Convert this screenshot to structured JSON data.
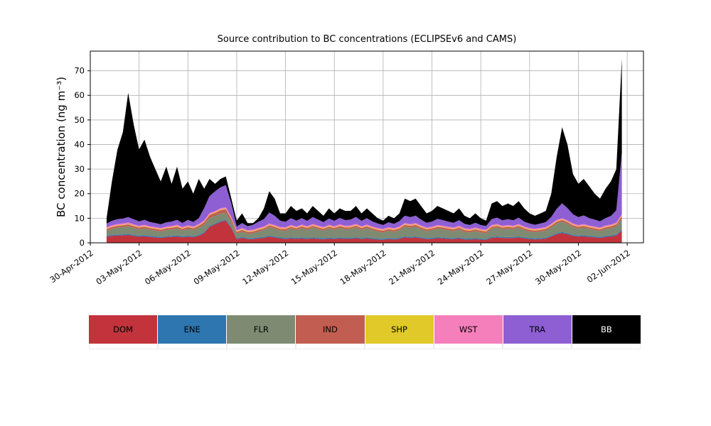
{
  "chart_data": {
    "type": "area",
    "stacked": true,
    "title": "Source contribution to BC concentrations (ECLIPSEv6 and CAMS)",
    "xlabel": "",
    "ylabel": "BC concentration (ng m⁻³)",
    "grid": true,
    "legend_position": "bottom",
    "xlim": [
      0,
      34
    ],
    "ylim": [
      0,
      78
    ],
    "y_ticks": [
      0,
      10,
      20,
      30,
      40,
      50,
      60,
      70
    ],
    "x_unit": "days since 30-Apr-2012",
    "x_tick_pos": [
      0,
      3,
      6,
      9,
      12,
      15,
      18,
      21,
      24,
      27,
      30,
      33
    ],
    "x_tick_labels": [
      "30-Apr-2012",
      "03-May-2012",
      "06-May-2012",
      "09-May-2012",
      "12-May-2012",
      "15-May-2012",
      "18-May-2012",
      "21-May-2012",
      "24-May-2012",
      "27-May-2012",
      "30-May-2012",
      "02-Jun-2012"
    ],
    "x": [
      1,
      1.33,
      1.67,
      2,
      2.33,
      2.67,
      3,
      3.33,
      3.67,
      4,
      4.33,
      4.67,
      5,
      5.33,
      5.67,
      6,
      6.33,
      6.67,
      7,
      7.33,
      7.67,
      8,
      8.33,
      8.67,
      9,
      9.33,
      9.67,
      10,
      10.33,
      10.67,
      11,
      11.33,
      11.67,
      12,
      12.33,
      12.67,
      13,
      13.33,
      13.67,
      14,
      14.33,
      14.67,
      15,
      15.33,
      15.67,
      16,
      16.33,
      16.67,
      17,
      17.33,
      17.67,
      18,
      18.33,
      18.67,
      19,
      19.33,
      19.67,
      20,
      20.33,
      20.67,
      21,
      21.33,
      21.67,
      22,
      22.33,
      22.67,
      23,
      23.33,
      23.67,
      24,
      24.33,
      24.67,
      25,
      25.33,
      25.67,
      26,
      26.33,
      26.67,
      27,
      27.33,
      27.67,
      28,
      28.33,
      28.67,
      29,
      29.33,
      29.67,
      30,
      30.33,
      30.67,
      31,
      31.33,
      31.67,
      32,
      32.33,
      32.67
    ],
    "series": [
      {
        "name": "DOM",
        "color": "#c2333c",
        "text_color": "#000000",
        "values": [
          2.5,
          2.8,
          3.0,
          3.0,
          3.2,
          2.8,
          2.5,
          2.7,
          2.4,
          2.2,
          2.0,
          2.3,
          2.4,
          2.6,
          2.2,
          2.5,
          2.3,
          2.8,
          4.0,
          6.5,
          7.5,
          8.5,
          9.0,
          6.0,
          1.5,
          2.0,
          1.5,
          1.5,
          1.8,
          2.0,
          2.5,
          2.2,
          1.8,
          1.5,
          1.8,
          1.6,
          1.8,
          1.5,
          1.8,
          1.6,
          1.4,
          1.7,
          1.5,
          1.8,
          1.6,
          1.6,
          1.9,
          1.5,
          1.8,
          1.5,
          1.3,
          1.2,
          1.5,
          1.3,
          1.6,
          2.2,
          2.0,
          2.2,
          1.8,
          1.5,
          1.6,
          1.9,
          1.8,
          1.6,
          1.5,
          1.8,
          1.4,
          1.3,
          1.5,
          1.3,
          1.2,
          2.0,
          2.2,
          1.9,
          2.0,
          1.9,
          2.2,
          1.8,
          1.5,
          1.4,
          1.5,
          1.7,
          2.5,
          3.5,
          4.0,
          3.5,
          2.8,
          2.5,
          2.7,
          2.4,
          2.2,
          2.0,
          2.4,
          2.6,
          3.0,
          5.0
        ]
      },
      {
        "name": "ENE",
        "color": "#2e76b0",
        "text_color": "#000000",
        "values": [
          0.4,
          0.4,
          0.4,
          0.4,
          0.4,
          0.4,
          0.4,
          0.4,
          0.4,
          0.4,
          0.4,
          0.4,
          0.4,
          0.4,
          0.4,
          0.4,
          0.4,
          0.4,
          0.4,
          0.4,
          0.4,
          0.4,
          0.4,
          0.4,
          0.4,
          0.4,
          0.4,
          0.4,
          0.4,
          0.4,
          0.4,
          0.4,
          0.4,
          0.4,
          0.4,
          0.4,
          0.4,
          0.4,
          0.4,
          0.4,
          0.4,
          0.4,
          0.4,
          0.4,
          0.4,
          0.4,
          0.4,
          0.4,
          0.4,
          0.4,
          0.4,
          0.4,
          0.4,
          0.4,
          0.4,
          0.4,
          0.4,
          0.4,
          0.4,
          0.4,
          0.4,
          0.4,
          0.4,
          0.4,
          0.4,
          0.4,
          0.4,
          0.4,
          0.4,
          0.4,
          0.4,
          0.4,
          0.4,
          0.4,
          0.4,
          0.4,
          0.4,
          0.4,
          0.4,
          0.4,
          0.4,
          0.4,
          0.4,
          0.4,
          0.4,
          0.4,
          0.4,
          0.4,
          0.4,
          0.4,
          0.4,
          0.4,
          0.4,
          0.4,
          0.4,
          0.4
        ]
      },
      {
        "name": "FLR",
        "color": "#7e8b72",
        "text_color": "#000000",
        "values": [
          2.0,
          2.5,
          2.8,
          3.0,
          3.2,
          2.9,
          2.6,
          2.8,
          2.5,
          2.4,
          2.2,
          2.5,
          2.6,
          2.9,
          2.4,
          2.8,
          2.5,
          3.0,
          3.0,
          3.2,
          3.0,
          3.0,
          2.8,
          2.2,
          1.8,
          2.2,
          1.8,
          2.0,
          2.4,
          2.8,
          3.5,
          3.2,
          2.8,
          3.0,
          3.6,
          3.2,
          3.8,
          3.4,
          4.0,
          3.6,
          3.2,
          3.8,
          3.4,
          3.9,
          3.5,
          3.6,
          4.0,
          3.4,
          3.8,
          3.3,
          2.9,
          2.6,
          3.0,
          2.8,
          3.2,
          4.0,
          3.8,
          4.0,
          3.4,
          2.9,
          3.1,
          3.5,
          3.3,
          3.1,
          2.9,
          3.3,
          2.7,
          2.5,
          2.9,
          2.5,
          2.3,
          3.4,
          3.6,
          3.2,
          3.4,
          3.2,
          3.6,
          3.0,
          2.7,
          2.5,
          2.7,
          2.9,
          3.4,
          4.0,
          4.2,
          3.8,
          3.2,
          2.9,
          3.1,
          2.8,
          2.6,
          2.4,
          2.8,
          3.0,
          3.4,
          4.5
        ]
      },
      {
        "name": "IND",
        "color": "#c25e51",
        "text_color": "#000000",
        "values": [
          0.7,
          0.7,
          0.7,
          0.7,
          0.7,
          0.7,
          0.7,
          0.7,
          0.7,
          0.7,
          0.7,
          0.7,
          0.7,
          0.7,
          0.7,
          0.7,
          0.7,
          0.7,
          1.0,
          1.2,
          1.3,
          1.4,
          1.5,
          1.1,
          0.7,
          0.7,
          0.7,
          0.7,
          0.7,
          0.7,
          0.7,
          0.7,
          0.7,
          0.7,
          0.7,
          0.7,
          0.7,
          0.7,
          0.7,
          0.7,
          0.7,
          0.7,
          0.7,
          0.7,
          0.7,
          0.7,
          0.7,
          0.7,
          0.7,
          0.7,
          0.7,
          0.7,
          0.7,
          0.7,
          0.7,
          0.7,
          0.7,
          0.7,
          0.7,
          0.7,
          0.7,
          0.7,
          0.7,
          0.7,
          0.7,
          0.7,
          0.7,
          0.7,
          0.7,
          0.7,
          0.7,
          0.7,
          0.7,
          0.7,
          0.7,
          0.7,
          0.7,
          0.7,
          0.7,
          0.7,
          0.7,
          0.7,
          0.7,
          0.7,
          0.7,
          0.7,
          0.7,
          0.7,
          0.7,
          0.7,
          0.7,
          0.7,
          0.7,
          0.7,
          0.7,
          1.0
        ]
      },
      {
        "name": "SHP",
        "color": "#e0c928",
        "text_color": "#000000",
        "values": [
          0.25,
          0.25,
          0.25,
          0.25,
          0.25,
          0.25,
          0.25,
          0.25,
          0.25,
          0.25,
          0.25,
          0.25,
          0.25,
          0.25,
          0.25,
          0.25,
          0.25,
          0.25,
          0.25,
          0.25,
          0.25,
          0.25,
          0.25,
          0.25,
          0.25,
          0.25,
          0.25,
          0.25,
          0.25,
          0.25,
          0.25,
          0.25,
          0.25,
          0.25,
          0.25,
          0.25,
          0.25,
          0.25,
          0.25,
          0.25,
          0.25,
          0.25,
          0.25,
          0.25,
          0.25,
          0.25,
          0.25,
          0.25,
          0.25,
          0.25,
          0.25,
          0.25,
          0.25,
          0.25,
          0.25,
          0.25,
          0.25,
          0.25,
          0.25,
          0.25,
          0.25,
          0.25,
          0.25,
          0.25,
          0.25,
          0.25,
          0.25,
          0.25,
          0.25,
          0.25,
          0.25,
          0.25,
          0.25,
          0.25,
          0.25,
          0.25,
          0.25,
          0.25,
          0.25,
          0.25,
          0.25,
          0.25,
          0.25,
          0.25,
          0.25,
          0.25,
          0.25,
          0.25,
          0.25,
          0.25,
          0.25,
          0.25,
          0.25,
          0.25,
          0.25,
          0.25
        ]
      },
      {
        "name": "WST",
        "color": "#f57fbb",
        "text_color": "#000000",
        "values": [
          0.5,
          0.5,
          0.5,
          0.5,
          0.5,
          0.5,
          0.5,
          0.5,
          0.5,
          0.5,
          0.5,
          0.5,
          0.5,
          0.5,
          0.5,
          0.5,
          0.5,
          0.5,
          0.5,
          0.5,
          0.5,
          0.5,
          0.5,
          0.5,
          0.5,
          0.5,
          0.5,
          0.5,
          0.5,
          0.5,
          0.5,
          0.5,
          0.5,
          0.5,
          0.5,
          0.5,
          0.5,
          0.5,
          0.5,
          0.5,
          0.5,
          0.5,
          0.5,
          0.5,
          0.5,
          0.5,
          0.5,
          0.5,
          0.5,
          0.5,
          0.5,
          0.5,
          0.5,
          0.5,
          0.5,
          0.5,
          0.5,
          0.5,
          0.5,
          0.5,
          0.5,
          0.5,
          0.5,
          0.5,
          0.5,
          0.5,
          0.5,
          0.5,
          0.5,
          0.5,
          0.5,
          0.5,
          0.5,
          0.5,
          0.5,
          0.5,
          0.5,
          0.5,
          0.5,
          0.5,
          0.5,
          0.5,
          0.5,
          0.5,
          0.5,
          0.5,
          0.5,
          0.5,
          0.5,
          0.5,
          0.5,
          0.5,
          0.5,
          0.5,
          0.5,
          0.5
        ]
      },
      {
        "name": "TRA",
        "color": "#8d5fd3",
        "text_color": "#000000",
        "values": [
          1.5,
          1.8,
          2.0,
          2.0,
          2.2,
          2.0,
          1.8,
          2.0,
          1.7,
          1.6,
          1.5,
          1.7,
          1.8,
          2.0,
          1.6,
          2.2,
          1.8,
          2.4,
          5.0,
          7.0,
          8.0,
          8.5,
          9.0,
          5.5,
          1.5,
          2.0,
          1.6,
          2.0,
          2.5,
          3.0,
          4.5,
          3.8,
          2.6,
          2.2,
          2.8,
          2.4,
          2.6,
          2.2,
          2.8,
          2.4,
          2.0,
          2.5,
          2.2,
          2.6,
          2.3,
          2.4,
          2.8,
          2.2,
          2.6,
          2.1,
          1.8,
          1.6,
          2.0,
          1.8,
          2.2,
          3.0,
          2.8,
          3.0,
          2.4,
          1.9,
          2.1,
          2.5,
          2.3,
          2.1,
          1.9,
          2.3,
          1.8,
          1.6,
          1.9,
          1.6,
          1.5,
          2.4,
          2.6,
          2.2,
          2.4,
          2.2,
          2.6,
          2.0,
          1.8,
          1.6,
          1.8,
          2.0,
          2.8,
          4.5,
          6.0,
          5.0,
          3.8,
          3.2,
          3.5,
          3.0,
          2.8,
          2.5,
          3.0,
          3.5,
          5.0,
          25.0
        ]
      },
      {
        "name": "BB",
        "color": "#000000",
        "text_color": "#ffffff",
        "values": [
          2.15,
          16.05,
          28.35,
          35.15,
          50.55,
          38.45,
          29.25,
          32.65,
          26.55,
          21.95,
          17.45,
          22.65,
          15.35,
          21.65,
          13.95,
          15.65,
          11.55,
          15.95,
          7.85,
          6.95,
          3.05,
          3.45,
          3.55,
          2.05,
          2.35,
          3.95,
          1.25,
          0.65,
          1.45,
          4.35,
          8.65,
          6.95,
          2.95,
          3.45,
          4.95,
          3.95,
          3.95,
          3.05,
          4.55,
          3.55,
          2.55,
          4.15,
          3.05,
          3.85,
          3.75,
          3.55,
          4.45,
          3.05,
          3.95,
          3.25,
          2.15,
          1.75,
          2.65,
          2.25,
          3.15,
          6.95,
          6.55,
          6.95,
          5.55,
          3.85,
          4.35,
          5.25,
          4.75,
          4.35,
          3.85,
          4.75,
          3.25,
          2.75,
          3.85,
          2.75,
          2.15,
          6.35,
          6.75,
          5.85,
          6.35,
          5.85,
          6.75,
          5.35,
          4.15,
          3.65,
          4.15,
          4.55,
          9.45,
          21.15,
          30.95,
          25.85,
          16.35,
          13.55,
          14.85,
          12.95,
          10.55,
          9.25,
          11.95,
          14.05,
          16.75,
          38.35
        ]
      }
    ],
    "colors": {
      "grid": "#b0b0b0",
      "axis": "#000000"
    }
  }
}
